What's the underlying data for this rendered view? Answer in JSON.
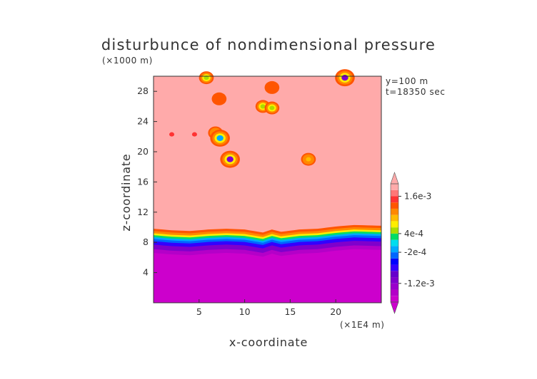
{
  "chart_data": {
    "type": "heatmap",
    "title": "disturbunce of nondimensional pressure",
    "xlabel": "x-coordinate",
    "ylabel": "z-coordinate",
    "x_unit": "(×1E4 m)",
    "y_unit": "(×1000 m)",
    "info": [
      "y=100 m",
      "t=18350 sec"
    ],
    "xlim": [
      0,
      25
    ],
    "ylim": [
      0,
      30
    ],
    "x_ticks": [
      "5",
      "10",
      "15",
      "20"
    ],
    "x_tick_values": [
      5,
      10,
      15,
      20
    ],
    "y_ticks": [
      "4",
      "8",
      "12",
      "16",
      "20",
      "24",
      "28"
    ],
    "y_tick_values": [
      4,
      8,
      12,
      16,
      20,
      24,
      28
    ],
    "colorbar": {
      "labels": [
        "1.6e-3",
        "4e-4",
        "-2e-4",
        "-1.2e-3"
      ],
      "label_values": [
        0.0016,
        0.0004,
        -0.0002,
        -0.0012
      ],
      "min": -0.0018,
      "max": 0.002,
      "colors": [
        "#cc00cc",
        "#b400c8",
        "#9a00cc",
        "#7f00cc",
        "#6600cc",
        "#3300ff",
        "#0000ff",
        "#0066ff",
        "#00aaff",
        "#00ddee",
        "#00dd66",
        "#aadd00",
        "#ffee00",
        "#ffbb00",
        "#ff8800",
        "#ff5500",
        "#ff3333",
        "#ff7777",
        "#ffaaaa"
      ]
    },
    "background_level": 0.0019,
    "lower_layer_level": -0.0017,
    "inversion_height_x": [
      0,
      2,
      4,
      6,
      8,
      10,
      12,
      13,
      14,
      16,
      18,
      20,
      22,
      25
    ],
    "inversion_height_z": [
      8.6,
      8.4,
      8.3,
      8.5,
      8.6,
      8.5,
      8.1,
      8.5,
      8.2,
      8.5,
      8.6,
      8.9,
      9.1,
      9.0
    ],
    "features": [
      {
        "x": 5.8,
        "z": 29.8,
        "level": 0.0004
      },
      {
        "x": 7.2,
        "z": 27.0,
        "level": 0.0012
      },
      {
        "x": 6.8,
        "z": 22.5,
        "level": 0.0008
      },
      {
        "x": 7.3,
        "z": 21.8,
        "level": -0.0002
      },
      {
        "x": 8.4,
        "z": 19.0,
        "level": -0.0012
      },
      {
        "x": 12.0,
        "z": 26.0,
        "level": 0.0004
      },
      {
        "x": 13.0,
        "z": 25.8,
        "level": 0.0004
      },
      {
        "x": 13.0,
        "z": 28.5,
        "level": 0.0012
      },
      {
        "x": 17.0,
        "z": 19.0,
        "level": 0.0008
      },
      {
        "x": 21.0,
        "z": 29.8,
        "level": -0.0012
      },
      {
        "x": 2.0,
        "z": 22.3,
        "level": 0.0014
      },
      {
        "x": 4.5,
        "z": 22.3,
        "level": 0.0014
      }
    ]
  }
}
